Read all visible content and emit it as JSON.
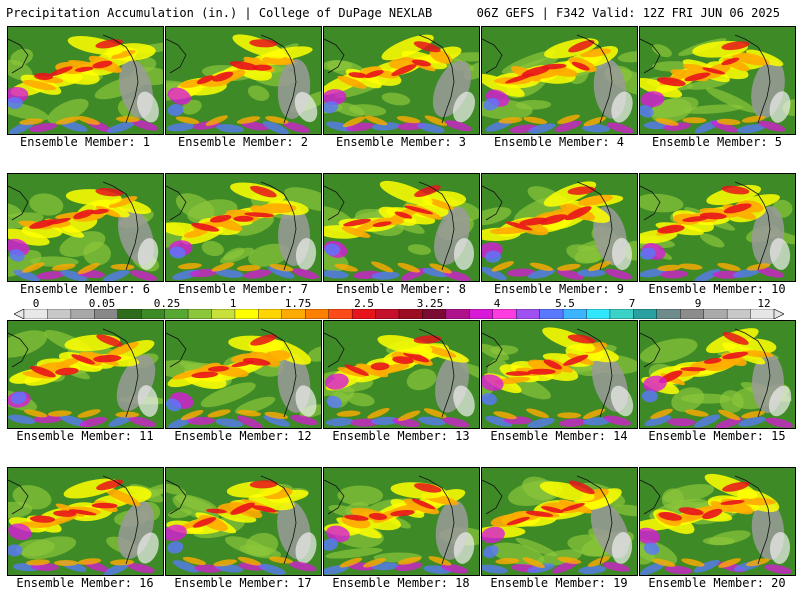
{
  "header": {
    "left_title": "Precipitation Accumulation (in.) | College of DuPage NEXLAB",
    "right_title": "06Z GEFS | F342 Valid: 12Z FRI JUN 06 2025"
  },
  "colorbar": {
    "ticks": [
      "0",
      "0.05",
      "0.25",
      "1",
      "1.75",
      "2.5",
      "3.25",
      "4",
      "5.5",
      "7",
      "9",
      "12"
    ],
    "colors": [
      "#e8e8e8",
      "#c8c8c8",
      "#a8a8a8",
      "#888888",
      "#2e6b1a",
      "#3e8a26",
      "#57a832",
      "#8cc63a",
      "#c8e03c",
      "#ffff00",
      "#ffd400",
      "#ffaa00",
      "#ff7f00",
      "#ff4a1a",
      "#e8141c",
      "#c4102a",
      "#9c0c22",
      "#7a0a32",
      "#b0128c",
      "#d81ad8",
      "#ff3ce0",
      "#a050f0",
      "#5a78ff",
      "#3cb4ff",
      "#32e6ff",
      "#3cd2c8",
      "#2aa0a0",
      "#6e8c8c",
      "#8c8c8c",
      "#aaaaaa",
      "#c8c8c8",
      "#e6e6e6"
    ]
  },
  "map_palette": {
    "base": "#3e8a26",
    "land_gray": "#9a9a9a",
    "light_green": "#8cc63a",
    "yellow": "#ffff00",
    "orange": "#ffaa00",
    "red": "#e8141c",
    "magenta": "#d81ad8",
    "blue": "#5a78ff",
    "white": "#f0f0f0"
  },
  "panels": [
    {
      "label": "Ensemble Member: 1"
    },
    {
      "label": "Ensemble Member: 2"
    },
    {
      "label": "Ensemble Member: 3"
    },
    {
      "label": "Ensemble Member: 4"
    },
    {
      "label": "Ensemble Member: 5"
    },
    {
      "label": "Ensemble Member: 6"
    },
    {
      "label": "Ensemble Member: 7"
    },
    {
      "label": "Ensemble Member: 8"
    },
    {
      "label": "Ensemble Member: 9"
    },
    {
      "label": "Ensemble Member: 10"
    },
    {
      "label": "Ensemble Member: 11"
    },
    {
      "label": "Ensemble Member: 12"
    },
    {
      "label": "Ensemble Member: 13"
    },
    {
      "label": "Ensemble Member: 14"
    },
    {
      "label": "Ensemble Member: 15"
    },
    {
      "label": "Ensemble Member: 16"
    },
    {
      "label": "Ensemble Member: 17"
    },
    {
      "label": "Ensemble Member: 18"
    },
    {
      "label": "Ensemble Member: 19"
    },
    {
      "label": "Ensemble Member: 20"
    }
  ]
}
